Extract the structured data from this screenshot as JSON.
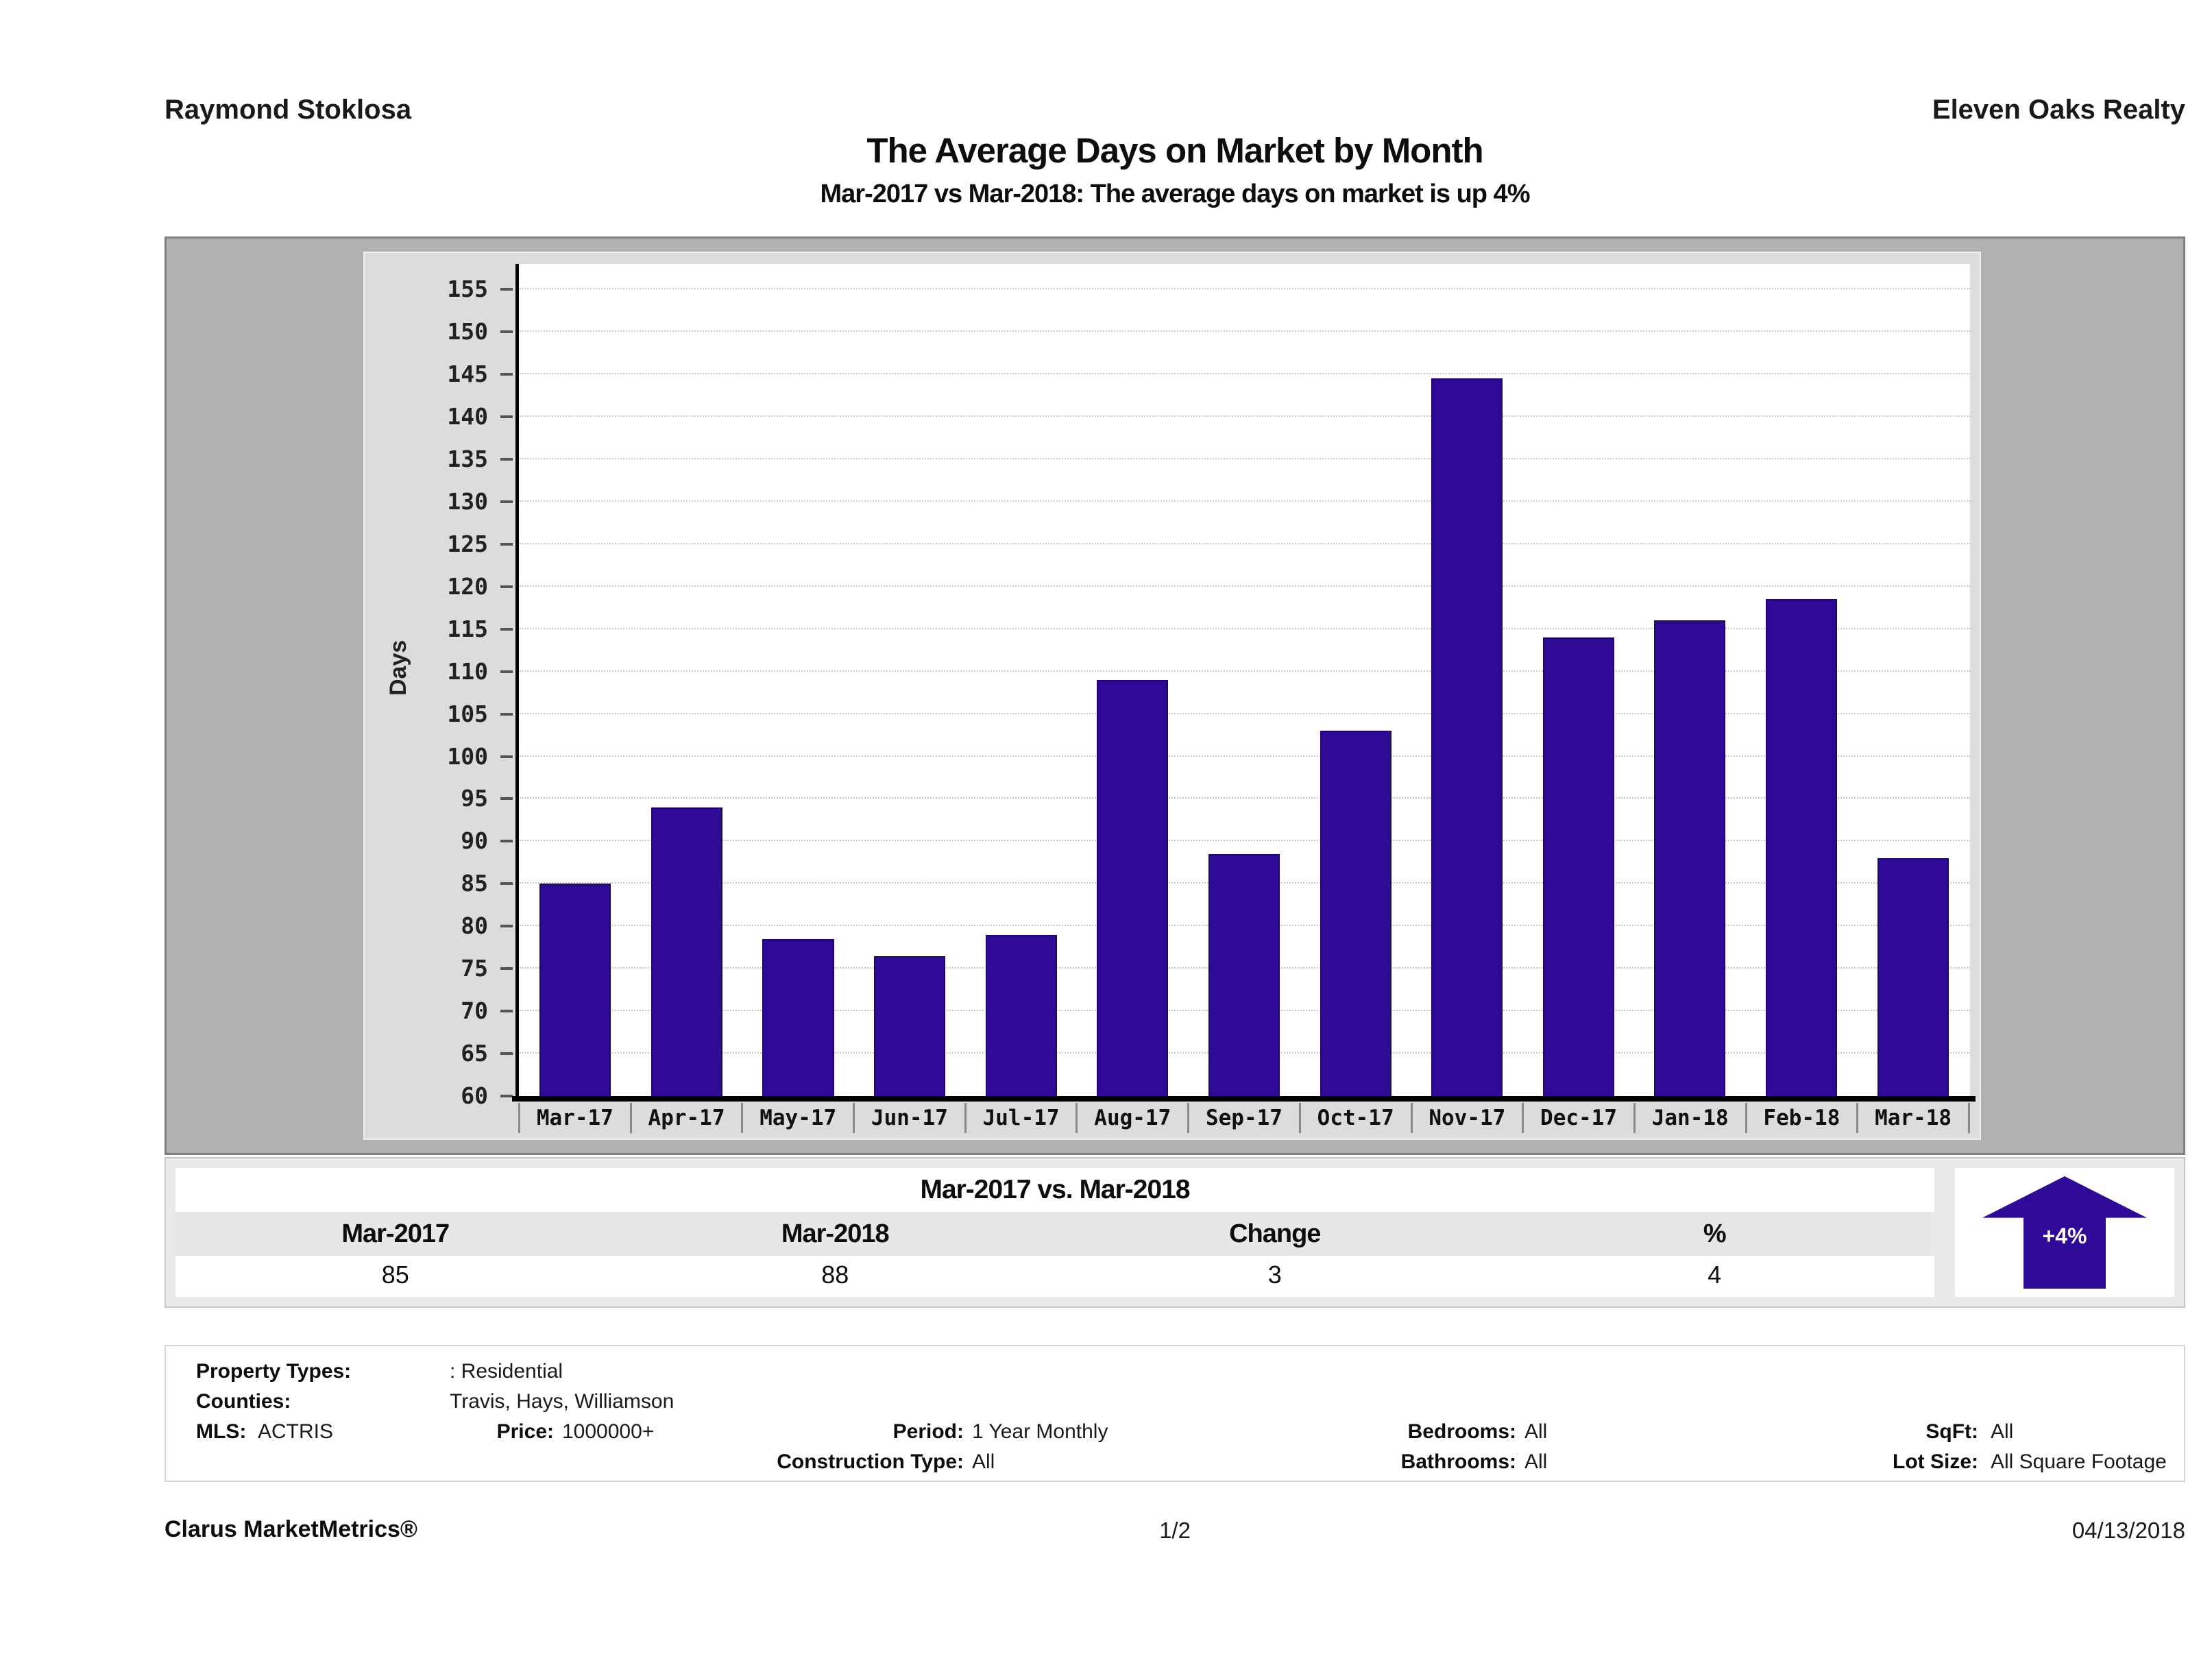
{
  "header": {
    "left": "Raymond Stoklosa",
    "right": "Eleven Oaks Realty"
  },
  "title": "The Average Days on Market by Month",
  "subtitle": "Mar-2017 vs Mar-2018: The average days on market is up 4%",
  "chart_data": {
    "type": "bar",
    "title": "The Average Days on Market by Month",
    "categories": [
      "Mar-17",
      "Apr-17",
      "May-17",
      "Jun-17",
      "Jul-17",
      "Aug-17",
      "Sep-17",
      "Oct-17",
      "Nov-17",
      "Dec-17",
      "Jan-18",
      "Feb-18",
      "Mar-18"
    ],
    "values": [
      85,
      94,
      78.5,
      76.5,
      79,
      109,
      88.5,
      103,
      144.5,
      114,
      116,
      118.5,
      88
    ],
    "xlabel": "",
    "ylabel": "Days",
    "ylim": [
      60,
      158
    ],
    "yticks": [
      60,
      65,
      70,
      75,
      80,
      85,
      90,
      95,
      100,
      105,
      110,
      115,
      120,
      125,
      130,
      135,
      140,
      145,
      150,
      155
    ],
    "grid": "horizontal-dotted",
    "legend_position": "none",
    "bar_color": "#2e0a96",
    "plot_background": "#ffffff",
    "panel_background": "#dcdcdc"
  },
  "summary_table": {
    "title": "Mar-2017 vs. Mar-2018",
    "columns": [
      "Mar-2017",
      "Mar-2018",
      "Change",
      "%"
    ],
    "values": [
      "85",
      "88",
      "3",
      "4"
    ],
    "badge": {
      "label": "+4%",
      "direction": "up",
      "color": "#2e0a96"
    }
  },
  "filters": {
    "property_types_label": "Property Types:",
    "property_types": ": Residential",
    "counties_label": "Counties:",
    "counties": "Travis, Hays, Williamson",
    "mls_label": "MLS:",
    "mls": "ACTRIS",
    "price_label": "Price:",
    "price": "1000000+",
    "period_label": "Period:",
    "period": "1 Year Monthly",
    "construction_label": "Construction Type:",
    "construction": "All",
    "bedrooms_label": "Bedrooms:",
    "bedrooms": "All",
    "bathrooms_label": "Bathrooms:",
    "bathrooms": "All",
    "sqft_label": "SqFt:",
    "sqft": "All",
    "lot_label": "Lot Size:",
    "lot": "All Square Footage"
  },
  "footer": {
    "left": "Clarus MarketMetrics®",
    "center": "1/2",
    "right": "04/13/2018"
  }
}
